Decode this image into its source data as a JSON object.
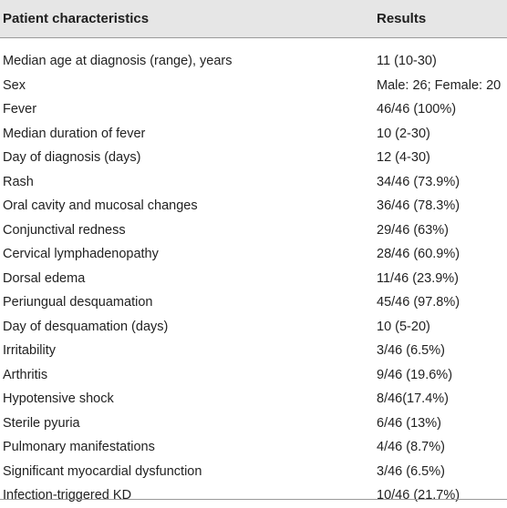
{
  "table": {
    "headers": [
      "Patient characteristics",
      "Results"
    ],
    "rows": [
      [
        "Median age at diagnosis (range), years",
        "11 (10-30)"
      ],
      [
        "Sex",
        "Male: 26; Female: 20"
      ],
      [
        "Fever",
        "46/46 (100%)"
      ],
      [
        "Median duration of fever",
        "10 (2-30)"
      ],
      [
        "Day of diagnosis (days)",
        "12 (4-30)"
      ],
      [
        "Rash",
        "34/46 (73.9%)"
      ],
      [
        "Oral cavity and mucosal changes",
        "36/46 (78.3%)"
      ],
      [
        "Conjunctival redness",
        "29/46 (63%)"
      ],
      [
        "Cervical lymphadenopathy",
        "28/46 (60.9%)"
      ],
      [
        "Dorsal edema",
        "11/46 (23.9%)"
      ],
      [
        "Periungual desquamation",
        "45/46 (97.8%)"
      ],
      [
        "Day of desquamation (days)",
        "10 (5-20)"
      ],
      [
        "Irritability",
        "3/46 (6.5%)"
      ],
      [
        "Arthritis",
        "9/46 (19.6%)"
      ],
      [
        "Hypotensive shock",
        "8/46(17.4%)"
      ],
      [
        "Sterile pyuria",
        "6/46 (13%)"
      ],
      [
        "Pulmonary manifestations",
        "4/46 (8.7%)"
      ],
      [
        "Significant myocardial dysfunction",
        "3/46 (6.5%)"
      ],
      [
        "Infection-triggered KD",
        "10/46 (21.7%)"
      ]
    ]
  }
}
